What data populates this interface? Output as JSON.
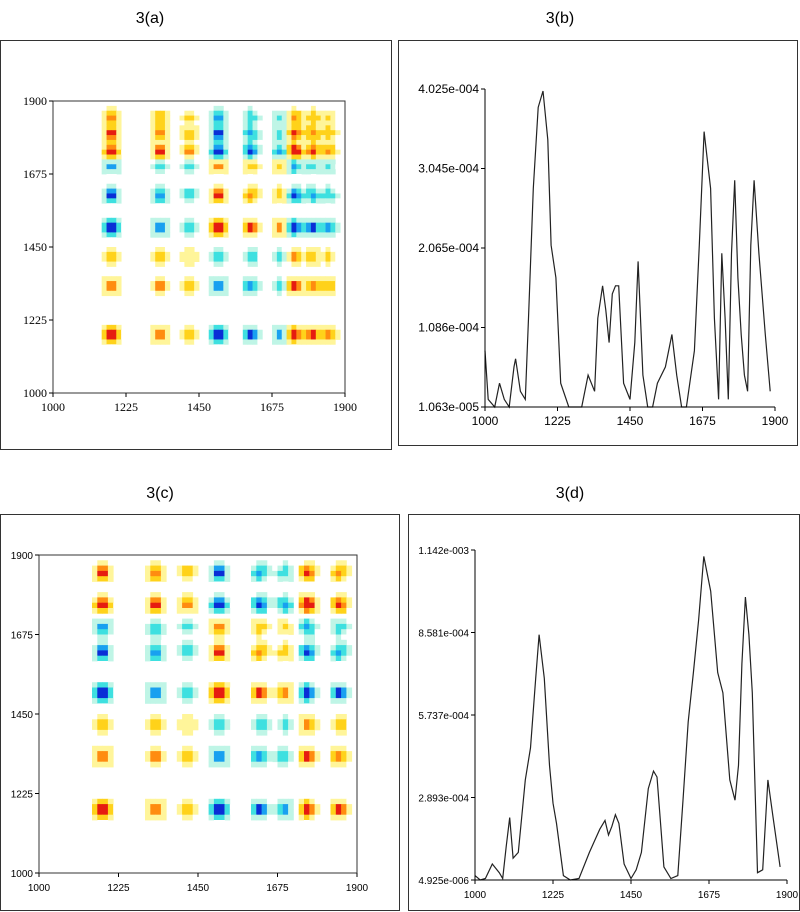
{
  "chart_data": [
    {
      "id": "a",
      "panel_label": "3(a)",
      "type": "heatmap",
      "description_free": true,
      "xlim": [
        1000,
        1900
      ],
      "ylim": [
        1000,
        1900
      ],
      "x_ticks": [
        "1000",
        "1225",
        "1450",
        "1675",
        "1900"
      ],
      "y_ticks": [
        "1900",
        "1675",
        "1450",
        "1225",
        "1000"
      ],
      "peaks": [
        1180,
        1330,
        1420,
        1510,
        1610,
        1700,
        1745,
        1800,
        1850
      ],
      "colorscale": [
        "#0a2fd6",
        "#19a0f0",
        "#3ee0e0",
        "#bff5e6",
        "#ffffff",
        "#fff59a",
        "#ffd21a",
        "#ff8c10",
        "#e61c10"
      ]
    },
    {
      "id": "b",
      "panel_label": "3(b)",
      "type": "line",
      "xlim": [
        1000,
        1900
      ],
      "ylim": [
        1.063e-05,
        0.0004025
      ],
      "x_ticks": [
        "1000",
        "1225",
        "1450",
        "1675",
        "1900"
      ],
      "y_ticks": [
        "4.025e-004",
        "3.045e-004",
        "2.065e-004",
        "1.086e-004",
        "1.063e-005"
      ],
      "x": [
        1000,
        1010,
        1030,
        1045,
        1060,
        1075,
        1090,
        1095,
        1110,
        1125,
        1135,
        1150,
        1165,
        1180,
        1195,
        1205,
        1220,
        1235,
        1260,
        1275,
        1290,
        1300,
        1320,
        1340,
        1350,
        1365,
        1375,
        1385,
        1395,
        1405,
        1415,
        1430,
        1450,
        1465,
        1475,
        1490,
        1505,
        1520,
        1535,
        1560,
        1580,
        1595,
        1610,
        1625,
        1650,
        1665,
        1680,
        1700,
        1712,
        1725,
        1735,
        1745,
        1755,
        1765,
        1775,
        1785,
        1795,
        1805,
        1815,
        1825,
        1835,
        1850,
        1870,
        1885
      ],
      "y": [
        8e-05,
        2e-05,
        1e-05,
        4e-05,
        2e-05,
        1e-05,
        6e-05,
        7e-05,
        3e-05,
        2e-05,
        0.00012,
        0.00028,
        0.00038,
        0.0004,
        0.00034,
        0.00021,
        0.00017,
        4e-05,
        1e-05,
        1e-05,
        1e-05,
        1e-05,
        5e-05,
        3e-05,
        0.00012,
        0.00016,
        0.00013,
        9e-05,
        0.00015,
        0.00016,
        0.00016,
        4e-05,
        2e-05,
        9e-05,
        0.00019,
        5e-05,
        1e-05,
        1e-05,
        4e-05,
        6e-05,
        0.0001,
        5e-05,
        1e-05,
        1e-05,
        8e-05,
        0.00021,
        0.00035,
        0.00028,
        0.00012,
        2e-05,
        0.0002,
        0.00012,
        2e-05,
        0.0002,
        0.00029,
        0.00017,
        0.0001,
        5e-05,
        3e-05,
        0.00021,
        0.00029,
        0.0002,
        0.0001,
        3e-05
      ]
    },
    {
      "id": "c",
      "panel_label": "3(c)",
      "type": "heatmap",
      "xlim": [
        1000,
        1900
      ],
      "ylim": [
        1000,
        1900
      ],
      "x_ticks": [
        "1000",
        "1225",
        "1450",
        "1675",
        "1900"
      ],
      "y_ticks": [
        "1900",
        "1675",
        "1450",
        "1225",
        "1000"
      ],
      "peaks": [
        1180,
        1330,
        1420,
        1510,
        1625,
        1695,
        1760,
        1850
      ],
      "colorscale": [
        "#0a2fd6",
        "#19a0f0",
        "#3ee0e0",
        "#bff5e6",
        "#ffffff",
        "#fff59a",
        "#ffd21a",
        "#ff8c10",
        "#e61c10"
      ]
    },
    {
      "id": "d",
      "panel_label": "3(d)",
      "type": "line",
      "xlim": [
        1000,
        1900
      ],
      "ylim": [
        4.925e-06,
        0.001142
      ],
      "x_ticks": [
        "1000",
        "1225",
        "1450",
        "1675",
        "1900"
      ],
      "y_ticks": [
        "1.142e-003",
        "8.581e-004",
        "5.737e-004",
        "2.893e-004",
        "4.925e-006"
      ],
      "x": [
        1000,
        1015,
        1030,
        1050,
        1070,
        1080,
        1090,
        1100,
        1110,
        1125,
        1145,
        1160,
        1175,
        1185,
        1200,
        1215,
        1225,
        1235,
        1255,
        1275,
        1300,
        1330,
        1345,
        1360,
        1375,
        1385,
        1395,
        1405,
        1415,
        1430,
        1450,
        1465,
        1480,
        1500,
        1515,
        1525,
        1545,
        1565,
        1585,
        1600,
        1615,
        1630,
        1645,
        1660,
        1680,
        1700,
        1715,
        1735,
        1750,
        1760,
        1770,
        1780,
        1790,
        1800,
        1815,
        1830,
        1845,
        1860,
        1880
      ],
      "y": [
        2e-05,
        5e-06,
        1e-05,
        6e-05,
        3e-05,
        1e-05,
        0.00012,
        0.00022,
        8e-05,
        0.0001,
        0.00035,
        0.00046,
        0.0007,
        0.00085,
        0.0007,
        0.0004,
        0.00027,
        0.0002,
        2e-05,
        5e-06,
        1e-05,
        0.0001,
        0.00014,
        0.00018,
        0.00021,
        0.00016,
        0.00019,
        0.00023,
        0.0002,
        6e-05,
        1e-05,
        4e-05,
        0.0001,
        0.00032,
        0.00038,
        0.00036,
        5e-05,
        1e-05,
        2e-05,
        0.00028,
        0.00055,
        0.00072,
        0.0009,
        0.00112,
        0.001,
        0.00072,
        0.00065,
        0.00035,
        0.00028,
        0.0004,
        0.00075,
        0.00098,
        0.00085,
        0.00065,
        3e-05,
        4e-05,
        0.00035,
        0.00022,
        5e-05
      ]
    }
  ]
}
